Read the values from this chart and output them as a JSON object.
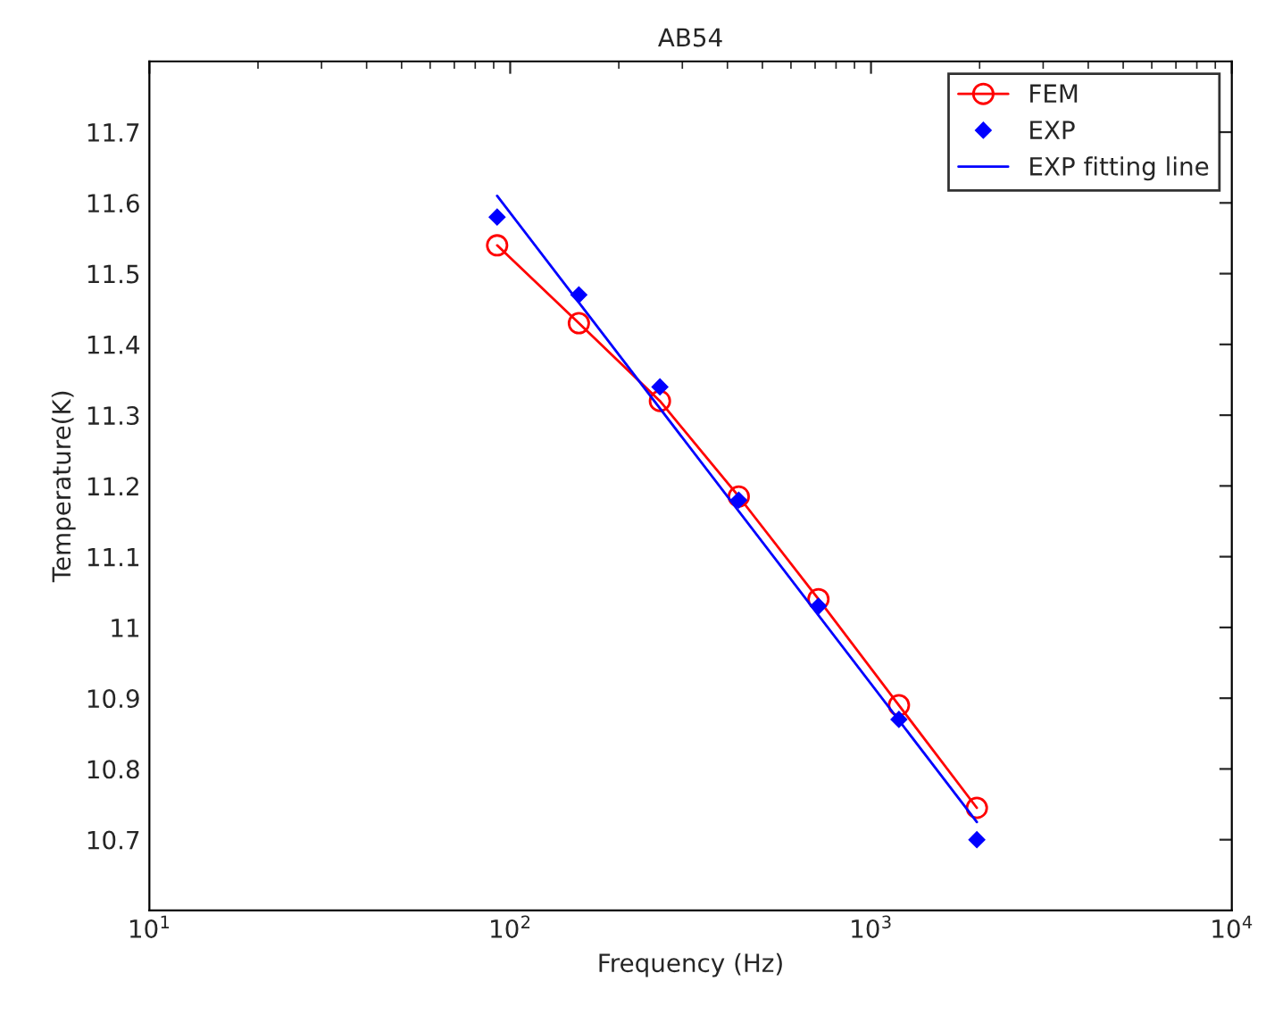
{
  "chart_data": {
    "type": "line",
    "title": "AB54",
    "xlabel": "Frequency (Hz)",
    "ylabel": "Temperature(K)",
    "log": "x",
    "xlim": [
      10,
      10000
    ],
    "xticks": [
      {
        "value": 10,
        "label": "10$^{1}$"
      },
      {
        "value": 100,
        "label": "10$^{2}$"
      },
      {
        "value": 1000,
        "label": "10$^{3}$"
      },
      {
        "value": 10000,
        "label": "10$^{4}$"
      }
    ],
    "ylim": [
      10.6,
      11.8
    ],
    "yticks": [
      10.7,
      10.8,
      10.9,
      11,
      11.1,
      11.2,
      11.3,
      11.4,
      11.5,
      11.6,
      11.7
    ],
    "x": [
      92,
      155,
      260,
      430,
      715,
      1195,
      1965
    ],
    "series": [
      {
        "name": "FEM",
        "color": "#ff0000",
        "marker": "circle",
        "line_style": "solid",
        "values": [
          11.54,
          11.43,
          11.32,
          11.185,
          11.04,
          10.89,
          10.745
        ]
      },
      {
        "name": "EXP",
        "type": "scatter",
        "color": "#0000ff",
        "marker": "diamond",
        "values": [
          11.58,
          11.47,
          11.34,
          11.18,
          11.03,
          10.87,
          10.7
        ]
      },
      {
        "name": "EXP fitting line",
        "type": "line",
        "color": "#0000ff",
        "marker": "none",
        "line_style": "solid",
        "x": [
          92,
          1965
        ],
        "values": [
          11.61,
          10.725
        ]
      }
    ],
    "grid": false,
    "legend": "top right"
  }
}
